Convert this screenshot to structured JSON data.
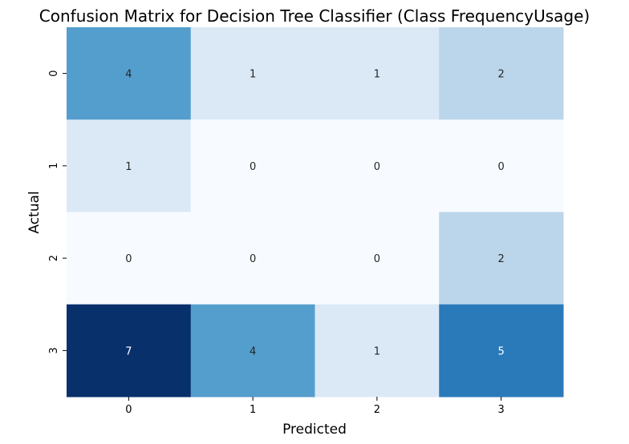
{
  "chart_data": {
    "type": "heatmap",
    "title": "Confusion Matrix for Decision Tree Classifier (Class FrequencyUsage)",
    "xlabel": "Predicted",
    "ylabel": "Actual",
    "x_categories": [
      "0",
      "1",
      "2",
      "3"
    ],
    "y_categories": [
      "0",
      "1",
      "2",
      "3"
    ],
    "values": [
      [
        4,
        1,
        1,
        2
      ],
      [
        1,
        0,
        0,
        0
      ],
      [
        0,
        0,
        0,
        2
      ],
      [
        7,
        4,
        1,
        5
      ]
    ],
    "colormap": "Blues",
    "value_range": [
      0,
      7
    ],
    "annotations": true,
    "colorbar": false
  }
}
